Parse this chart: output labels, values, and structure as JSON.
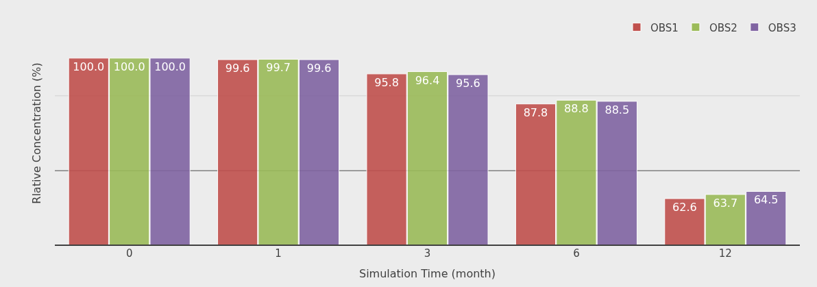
{
  "chart_data": {
    "type": "bar",
    "xlabel": "Simulation Time (month)",
    "ylabel": "Rlative Concentration (%)",
    "categories": [
      "0",
      "1",
      "3",
      "6",
      "12"
    ],
    "series": [
      {
        "name": "OBS1",
        "color": "#c0504d",
        "values": [
          100.0,
          99.6,
          95.8,
          87.8,
          62.6
        ],
        "value_labels": [
          "100.0",
          "99.6",
          "95.8",
          "87.8",
          "62.6"
        ]
      },
      {
        "name": "OBS2",
        "color": "#9bbb59",
        "values": [
          100.0,
          99.7,
          96.4,
          88.8,
          63.7
        ],
        "value_labels": [
          "100.0",
          "99.7",
          "96.4",
          "88.8",
          "63.7"
        ]
      },
      {
        "name": "OBS3",
        "color": "#8064a2",
        "values": [
          100.0,
          99.6,
          95.6,
          88.5,
          64.5
        ],
        "value_labels": [
          "100.0",
          "99.6",
          "95.6",
          "88.5",
          "64.5"
        ]
      }
    ],
    "ylim": [
      50,
      110
    ],
    "ref_lines": [
      {
        "axis": "y",
        "value": 70,
        "color": "#808080"
      },
      {
        "axis": "y",
        "value": 90,
        "color": "#d9d9d9"
      }
    ],
    "tick_labels": "x",
    "legend": "top right"
  }
}
